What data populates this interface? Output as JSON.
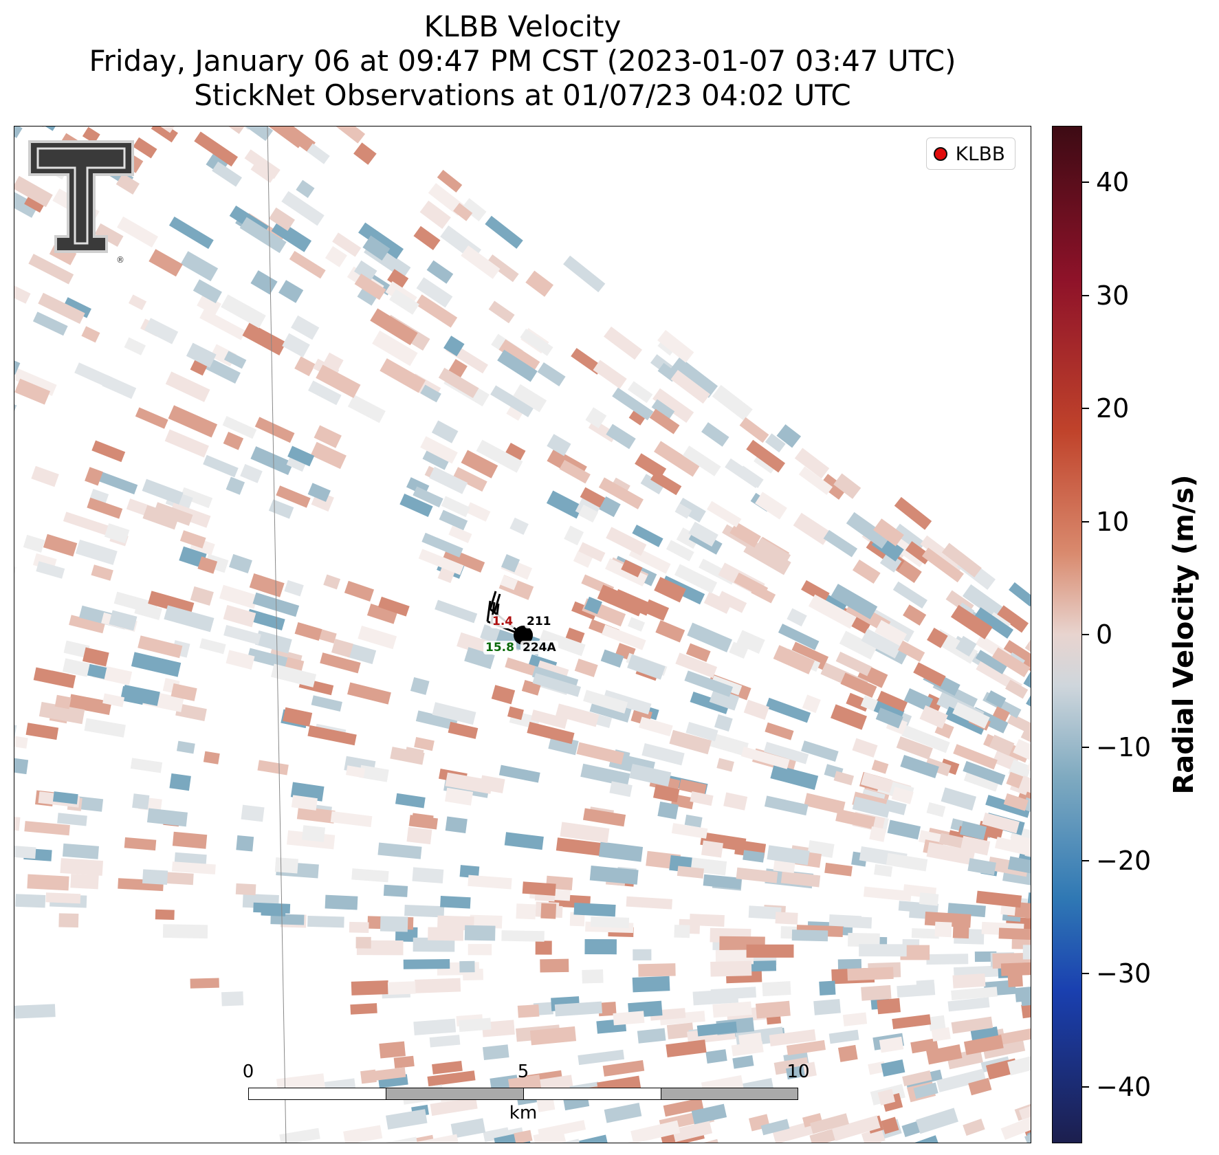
{
  "title": {
    "line1": "KLBB Velocity",
    "line2": "Friday, January 06 at 09:47 PM CST (2023-01-07 03:47 UTC)",
    "line3": "StickNet Observations at 01/07/23 04:02 UTC"
  },
  "legend": {
    "label": "KLBB",
    "marker_color": "#e00000"
  },
  "logo": {
    "name": "texas-tech-double-t-logo",
    "trademark": "®"
  },
  "stations": [
    {
      "id": "211",
      "value": "1.4",
      "value_color": "#b01010"
    },
    {
      "id": "224A",
      "value": "15.8",
      "value_color": "#0a6a0a"
    }
  ],
  "scalebar": {
    "ticks": [
      "0",
      "5",
      "10"
    ],
    "unit": "km",
    "colors": [
      "#ffffff",
      "#aaaaaa",
      "#ffffff",
      "#aaaaaa"
    ]
  },
  "colorbar": {
    "title": "Radial Velocity (m/s)",
    "ticks": [
      "40",
      "30",
      "20",
      "10",
      "0",
      "−10",
      "−20",
      "−30",
      "−40"
    ],
    "range": [
      -45,
      45
    ]
  }
}
